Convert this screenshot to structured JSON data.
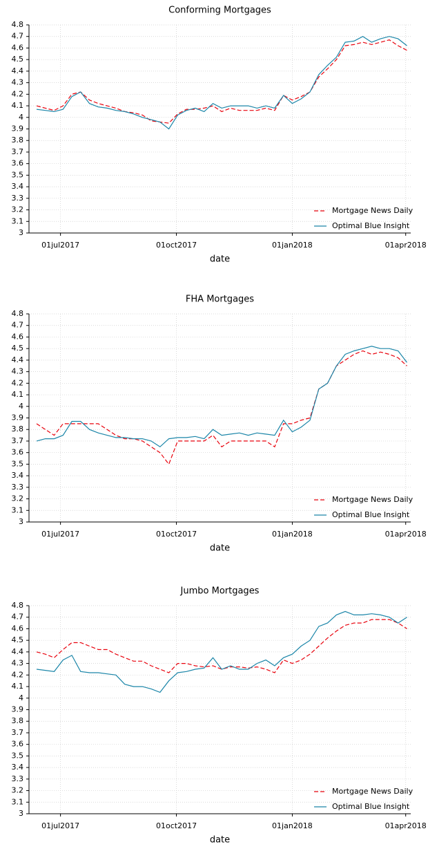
{
  "chart_data": [
    {
      "type": "line",
      "title": "Conforming Mortgages",
      "xlabel": "date",
      "grid": true,
      "legend": "lower right",
      "xlim": [
        "2017-06-06",
        "2018-04-05"
      ],
      "ylim": [
        3,
        4.8
      ],
      "yticks": [
        3,
        3.1,
        3.2,
        3.3,
        3.4,
        3.5,
        3.6,
        3.7,
        3.8,
        3.9,
        4,
        4.1,
        4.2,
        4.3,
        4.4,
        4.5,
        4.6,
        4.7,
        4.8
      ],
      "xticks": [
        {
          "value": "2017-07-01",
          "label": "01jul2017"
        },
        {
          "value": "2017-10-01",
          "label": "01oct2017"
        },
        {
          "value": "2018-01-01",
          "label": "01jan2018"
        },
        {
          "value": "2018-04-01",
          "label": "01apr2018"
        }
      ],
      "x": [
        "2017-06-12",
        "2017-06-19",
        "2017-06-26",
        "2017-07-03",
        "2017-07-10",
        "2017-07-17",
        "2017-07-24",
        "2017-07-31",
        "2017-08-07",
        "2017-08-14",
        "2017-08-21",
        "2017-08-28",
        "2017-09-04",
        "2017-09-11",
        "2017-09-18",
        "2017-09-25",
        "2017-10-02",
        "2017-10-09",
        "2017-10-16",
        "2017-10-23",
        "2017-10-30",
        "2017-11-06",
        "2017-11-13",
        "2017-11-20",
        "2017-11-27",
        "2017-12-04",
        "2017-12-11",
        "2017-12-18",
        "2017-12-25",
        "2018-01-01",
        "2018-01-08",
        "2018-01-15",
        "2018-01-22",
        "2018-01-29",
        "2018-02-05",
        "2018-02-12",
        "2018-02-19",
        "2018-02-26",
        "2018-03-05",
        "2018-03-12",
        "2018-03-19",
        "2018-03-26",
        "2018-04-02"
      ],
      "series": [
        {
          "name": "Mortgage News Daily",
          "color": "#e8000b",
          "line_style": "dashed",
          "values": [
            4.1,
            4.08,
            4.06,
            4.1,
            4.2,
            4.22,
            4.15,
            4.12,
            4.1,
            4.08,
            4.05,
            4.04,
            4.02,
            3.97,
            3.96,
            3.95,
            4.03,
            4.07,
            4.07,
            4.08,
            4.1,
            4.05,
            4.08,
            4.06,
            4.06,
            4.06,
            4.08,
            4.06,
            4.19,
            4.15,
            4.18,
            4.22,
            4.35,
            4.42,
            4.5,
            4.62,
            4.63,
            4.65,
            4.63,
            4.65,
            4.67,
            4.62,
            4.58
          ]
        },
        {
          "name": "Optimal Blue Insight",
          "color": "#1a85a8",
          "line_style": "solid",
          "values": [
            4.07,
            4.06,
            4.05,
            4.07,
            4.18,
            4.22,
            4.12,
            4.09,
            4.08,
            4.06,
            4.05,
            4.03,
            4.0,
            3.98,
            3.96,
            3.9,
            4.02,
            4.06,
            4.08,
            4.05,
            4.12,
            4.08,
            4.1,
            4.1,
            4.1,
            4.08,
            4.1,
            4.08,
            4.19,
            4.12,
            4.16,
            4.22,
            4.37,
            4.45,
            4.52,
            4.65,
            4.66,
            4.7,
            4.65,
            4.68,
            4.7,
            4.68,
            4.62
          ]
        }
      ]
    },
    {
      "type": "line",
      "title": "FHA Mortgages",
      "xlabel": "date",
      "grid": true,
      "legend": "lower right",
      "xlim": [
        "2017-06-06",
        "2018-04-05"
      ],
      "ylim": [
        3,
        4.8
      ],
      "yticks": [
        3,
        3.1,
        3.2,
        3.3,
        3.4,
        3.5,
        3.6,
        3.7,
        3.8,
        3.9,
        4,
        4.1,
        4.2,
        4.3,
        4.4,
        4.5,
        4.6,
        4.7,
        4.8
      ],
      "xticks": [
        {
          "value": "2017-07-01",
          "label": "01jul2017"
        },
        {
          "value": "2017-10-01",
          "label": "01oct2017"
        },
        {
          "value": "2018-01-01",
          "label": "01jan2018"
        },
        {
          "value": "2018-04-01",
          "label": "01apr2018"
        }
      ],
      "x": [
        "2017-06-12",
        "2017-06-19",
        "2017-06-26",
        "2017-07-03",
        "2017-07-10",
        "2017-07-17",
        "2017-07-24",
        "2017-07-31",
        "2017-08-07",
        "2017-08-14",
        "2017-08-21",
        "2017-08-28",
        "2017-09-04",
        "2017-09-11",
        "2017-09-18",
        "2017-09-25",
        "2017-10-02",
        "2017-10-09",
        "2017-10-16",
        "2017-10-23",
        "2017-10-30",
        "2017-11-06",
        "2017-11-13",
        "2017-11-20",
        "2017-11-27",
        "2017-12-04",
        "2017-12-11",
        "2017-12-18",
        "2017-12-25",
        "2018-01-01",
        "2018-01-08",
        "2018-01-15",
        "2018-01-22",
        "2018-01-29",
        "2018-02-05",
        "2018-02-12",
        "2018-02-19",
        "2018-02-26",
        "2018-03-05",
        "2018-03-12",
        "2018-03-19",
        "2018-03-26",
        "2018-04-02"
      ],
      "series": [
        {
          "name": "Mortgage News Daily",
          "color": "#e8000b",
          "line_style": "dashed",
          "values": [
            3.85,
            3.8,
            3.75,
            3.85,
            3.85,
            3.85,
            3.85,
            3.85,
            3.8,
            3.75,
            3.72,
            3.72,
            3.7,
            3.65,
            3.6,
            3.5,
            3.7,
            3.7,
            3.7,
            3.7,
            3.75,
            3.65,
            3.7,
            3.7,
            3.7,
            3.7,
            3.7,
            3.65,
            3.85,
            3.85,
            3.88,
            3.9,
            4.15,
            4.2,
            4.35,
            4.4,
            4.45,
            4.48,
            4.45,
            4.47,
            4.45,
            4.42,
            4.35
          ]
        },
        {
          "name": "Optimal Blue Insight",
          "color": "#1a85a8",
          "line_style": "solid",
          "values": [
            3.7,
            3.72,
            3.72,
            3.75,
            3.87,
            3.87,
            3.8,
            3.77,
            3.75,
            3.73,
            3.73,
            3.72,
            3.72,
            3.7,
            3.65,
            3.72,
            3.73,
            3.73,
            3.74,
            3.72,
            3.8,
            3.75,
            3.76,
            3.77,
            3.75,
            3.77,
            3.76,
            3.75,
            3.88,
            3.78,
            3.82,
            3.88,
            4.15,
            4.2,
            4.35,
            4.45,
            4.48,
            4.5,
            4.52,
            4.5,
            4.5,
            4.48,
            4.38
          ]
        }
      ]
    },
    {
      "type": "line",
      "title": "Jumbo Mortgages",
      "xlabel": "date",
      "grid": true,
      "legend": "lower right",
      "xlim": [
        "2017-06-06",
        "2018-04-05"
      ],
      "ylim": [
        3,
        4.8
      ],
      "yticks": [
        3,
        3.1,
        3.2,
        3.3,
        3.4,
        3.5,
        3.6,
        3.7,
        3.8,
        3.9,
        4,
        4.1,
        4.2,
        4.3,
        4.4,
        4.5,
        4.6,
        4.7,
        4.8
      ],
      "xticks": [
        {
          "value": "2017-07-01",
          "label": "01jul2017"
        },
        {
          "value": "2017-10-01",
          "label": "01oct2017"
        },
        {
          "value": "2018-01-01",
          "label": "01jan2018"
        },
        {
          "value": "2018-04-01",
          "label": "01apr2018"
        }
      ],
      "x": [
        "2017-06-12",
        "2017-06-19",
        "2017-06-26",
        "2017-07-03",
        "2017-07-10",
        "2017-07-17",
        "2017-07-24",
        "2017-07-31",
        "2017-08-07",
        "2017-08-14",
        "2017-08-21",
        "2017-08-28",
        "2017-09-04",
        "2017-09-11",
        "2017-09-18",
        "2017-09-25",
        "2017-10-02",
        "2017-10-09",
        "2017-10-16",
        "2017-10-23",
        "2017-10-30",
        "2017-11-06",
        "2017-11-13",
        "2017-11-20",
        "2017-11-27",
        "2017-12-04",
        "2017-12-11",
        "2017-12-18",
        "2017-12-25",
        "2018-01-01",
        "2018-01-08",
        "2018-01-15",
        "2018-01-22",
        "2018-01-29",
        "2018-02-05",
        "2018-02-12",
        "2018-02-19",
        "2018-02-26",
        "2018-03-05",
        "2018-03-12",
        "2018-03-19",
        "2018-03-26",
        "2018-04-02"
      ],
      "series": [
        {
          "name": "Mortgage News Daily",
          "color": "#e8000b",
          "line_style": "dashed",
          "values": [
            4.4,
            4.38,
            4.35,
            4.42,
            4.48,
            4.48,
            4.45,
            4.42,
            4.42,
            4.38,
            4.35,
            4.32,
            4.32,
            4.28,
            4.25,
            4.22,
            4.3,
            4.3,
            4.28,
            4.27,
            4.28,
            4.25,
            4.27,
            4.27,
            4.26,
            4.27,
            4.25,
            4.22,
            4.33,
            4.3,
            4.33,
            4.38,
            4.45,
            4.52,
            4.58,
            4.63,
            4.65,
            4.65,
            4.68,
            4.68,
            4.68,
            4.65,
            4.6
          ]
        },
        {
          "name": "Optimal Blue Insight",
          "color": "#1a85a8",
          "line_style": "solid",
          "values": [
            4.25,
            4.24,
            4.23,
            4.33,
            4.37,
            4.23,
            4.22,
            4.22,
            4.21,
            4.2,
            4.12,
            4.1,
            4.1,
            4.08,
            4.05,
            4.15,
            4.22,
            4.23,
            4.25,
            4.26,
            4.35,
            4.25,
            4.28,
            4.25,
            4.25,
            4.3,
            4.33,
            4.28,
            4.35,
            4.38,
            4.45,
            4.5,
            4.62,
            4.65,
            4.72,
            4.75,
            4.72,
            4.72,
            4.73,
            4.72,
            4.7,
            4.65,
            4.7
          ]
        }
      ]
    }
  ]
}
